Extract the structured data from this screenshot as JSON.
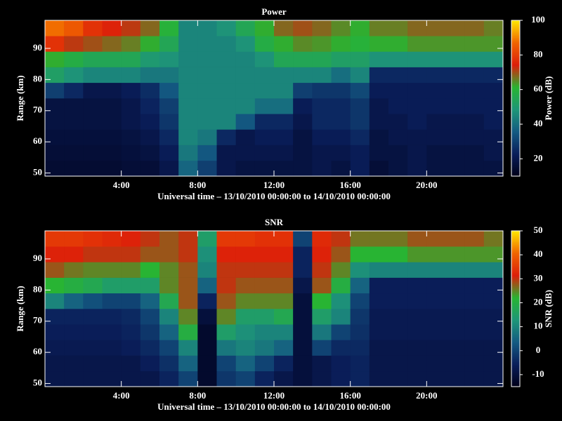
{
  "chart_data": [
    {
      "type": "heatmap",
      "title": "Power",
      "xlabel": "Universal time – 13/10/2010 00:00:00 to 14/10/2010 00:00:00",
      "ylabel": "Range (km)",
      "colorbar_label": "Power (dB)",
      "xlim": [
        0,
        24
      ],
      "ylim": [
        49,
        99
      ],
      "xticks": [
        {
          "value": 4,
          "label": "4:00"
        },
        {
          "value": 8,
          "label": "8:00"
        },
        {
          "value": 12,
          "label": "12:00"
        },
        {
          "value": 16,
          "label": "16:00"
        },
        {
          "value": 20,
          "label": "20:00"
        }
      ],
      "yticks": [
        50,
        60,
        70,
        80,
        90
      ],
      "clim": [
        10,
        100
      ],
      "cticks": [
        20,
        40,
        60,
        80,
        100
      ],
      "colormap": [
        "#000018",
        "#0a1e5a",
        "#145a82",
        "#1e9678",
        "#28b432",
        "#dc1e0a",
        "#f06400",
        "#ffe600"
      ],
      "xbins": [
        0,
        1,
        2,
        3,
        4,
        5,
        6,
        7,
        8,
        9,
        10,
        11,
        12,
        13,
        14,
        15,
        16,
        17,
        18,
        19,
        20,
        21,
        22,
        23,
        24
      ],
      "ybins": [
        49,
        54,
        59,
        64,
        69,
        74,
        79,
        84,
        89,
        94,
        99
      ],
      "values": [
        [
          15,
          15,
          15,
          15,
          16,
          16,
          20,
          38,
          30,
          20,
          18,
          18,
          18,
          18,
          20,
          18,
          22,
          16,
          18,
          20,
          18,
          18,
          18,
          18
        ],
        [
          16,
          16,
          16,
          16,
          17,
          18,
          22,
          42,
          35,
          20,
          20,
          20,
          20,
          18,
          20,
          20,
          22,
          18,
          18,
          20,
          18,
          18,
          18,
          20
        ],
        [
          17,
          17,
          17,
          17,
          18,
          20,
          25,
          45,
          42,
          25,
          20,
          22,
          22,
          18,
          22,
          22,
          25,
          18,
          20,
          20,
          20,
          20,
          20,
          20
        ],
        [
          18,
          18,
          18,
          18,
          20,
          22,
          28,
          45,
          45,
          45,
          35,
          25,
          25,
          20,
          25,
          25,
          28,
          20,
          20,
          22,
          20,
          20,
          20,
          22
        ],
        [
          18,
          18,
          18,
          18,
          20,
          24,
          30,
          45,
          45,
          45,
          45,
          40,
          40,
          22,
          25,
          25,
          28,
          20,
          22,
          22,
          22,
          22,
          22,
          22
        ],
        [
          30,
          25,
          20,
          20,
          22,
          26,
          35,
          45,
          45,
          45,
          45,
          45,
          45,
          30,
          28,
          28,
          32,
          22,
          22,
          22,
          22,
          22,
          22,
          22
        ],
        [
          52,
          48,
          45,
          45,
          45,
          42,
          42,
          45,
          45,
          45,
          45,
          45,
          45,
          45,
          45,
          40,
          45,
          25,
          25,
          25,
          25,
          25,
          25,
          25
        ],
        [
          62,
          58,
          55,
          55,
          55,
          50,
          48,
          45,
          45,
          45,
          45,
          48,
          55,
          55,
          55,
          52,
          52,
          48,
          48,
          48,
          48,
          48,
          48,
          48
        ],
        [
          78,
          72,
          70,
          68,
          66,
          62,
          55,
          45,
          45,
          45,
          48,
          58,
          62,
          65,
          64,
          62,
          60,
          62,
          62,
          64,
          64,
          64,
          64,
          64
        ],
        [
          88,
          85,
          78,
          75,
          72,
          68,
          60,
          45,
          45,
          48,
          55,
          62,
          68,
          70,
          68,
          65,
          62,
          66,
          66,
          68,
          68,
          68,
          68,
          66
        ]
      ]
    },
    {
      "type": "heatmap",
      "title": "SNR",
      "xlabel": "Universal time – 13/10/2010 00:00:00 to 14/10/2010 00:00:00",
      "ylabel": "Range (km)",
      "colorbar_label": "SNR (dB)",
      "xlim": [
        0,
        24
      ],
      "ylim": [
        49,
        99
      ],
      "xticks": [
        {
          "value": 4,
          "label": "4:00"
        },
        {
          "value": 8,
          "label": "8:00"
        },
        {
          "value": 12,
          "label": "12:00"
        },
        {
          "value": 16,
          "label": "16:00"
        },
        {
          "value": 20,
          "label": "20:00"
        }
      ],
      "yticks": [
        50,
        60,
        70,
        80,
        90
      ],
      "clim": [
        -15,
        50
      ],
      "cticks": [
        -10,
        0,
        10,
        20,
        30,
        40,
        50
      ],
      "colormap": [
        "#000018",
        "#0a1e5a",
        "#145a82",
        "#1e9678",
        "#28b432",
        "#dc1e0a",
        "#f06400",
        "#ffe600"
      ],
      "xbins": [
        0,
        1,
        2,
        3,
        4,
        5,
        6,
        7,
        8,
        9,
        10,
        11,
        12,
        13,
        14,
        15,
        16,
        17,
        18,
        19,
        20,
        21,
        22,
        23,
        24
      ],
      "ybins": [
        49,
        54,
        59,
        64,
        69,
        74,
        79,
        84,
        89,
        94,
        99
      ],
      "values": [
        [
          -8,
          -8,
          -8,
          -8,
          -8,
          -8,
          -5,
          0,
          -12,
          -2,
          0,
          -5,
          -8,
          -10,
          -8,
          -6,
          -5,
          -8,
          -8,
          -8,
          -8,
          -8,
          -8,
          -8
        ],
        [
          -8,
          -8,
          -8,
          -8,
          -8,
          -6,
          -3,
          5,
          -12,
          0,
          5,
          0,
          -5,
          -10,
          -8,
          -6,
          -5,
          -8,
          -8,
          -8,
          -8,
          -8,
          -8,
          -8
        ],
        [
          -7,
          -7,
          -7,
          -7,
          -6,
          -4,
          0,
          10,
          -12,
          8,
          10,
          8,
          5,
          -10,
          0,
          -4,
          -4,
          -8,
          -8,
          -8,
          -8,
          -8,
          -8,
          -8
        ],
        [
          -6,
          -6,
          -6,
          -6,
          -5,
          -2,
          5,
          20,
          -12,
          15,
          12,
          10,
          10,
          -10,
          8,
          0,
          -3,
          -7,
          -7,
          -7,
          -7,
          -7,
          -7,
          -7
        ],
        [
          -5,
          -5,
          -5,
          -5,
          -4,
          0,
          10,
          25,
          -10,
          25,
          15,
          15,
          18,
          -10,
          15,
          10,
          -2,
          -7,
          -7,
          -7,
          -7,
          -7,
          -7,
          -7
        ],
        [
          10,
          5,
          2,
          0,
          0,
          5,
          18,
          28,
          -5,
          28,
          25,
          25,
          25,
          -10,
          22,
          12,
          0,
          -6,
          -6,
          -6,
          -6,
          -6,
          -6,
          -6
        ],
        [
          22,
          20,
          18,
          15,
          15,
          15,
          25,
          28,
          5,
          30,
          28,
          28,
          28,
          -8,
          28,
          20,
          5,
          -6,
          -6,
          -6,
          -6,
          -6,
          -6,
          -6
        ],
        [
          28,
          26,
          25,
          25,
          25,
          22,
          25,
          28,
          10,
          30,
          30,
          30,
          30,
          -5,
          30,
          25,
          12,
          10,
          10,
          10,
          10,
          10,
          10,
          10
        ],
        [
          32,
          32,
          30,
          30,
          30,
          28,
          28,
          30,
          12,
          32,
          32,
          32,
          32,
          -5,
          32,
          28,
          22,
          22,
          22,
          24,
          24,
          24,
          24,
          24
        ],
        [
          35,
          35,
          34,
          33,
          32,
          30,
          28,
          30,
          15,
          35,
          35,
          34,
          34,
          0,
          33,
          30,
          26,
          26,
          26,
          28,
          28,
          28,
          28,
          26
        ]
      ]
    }
  ]
}
